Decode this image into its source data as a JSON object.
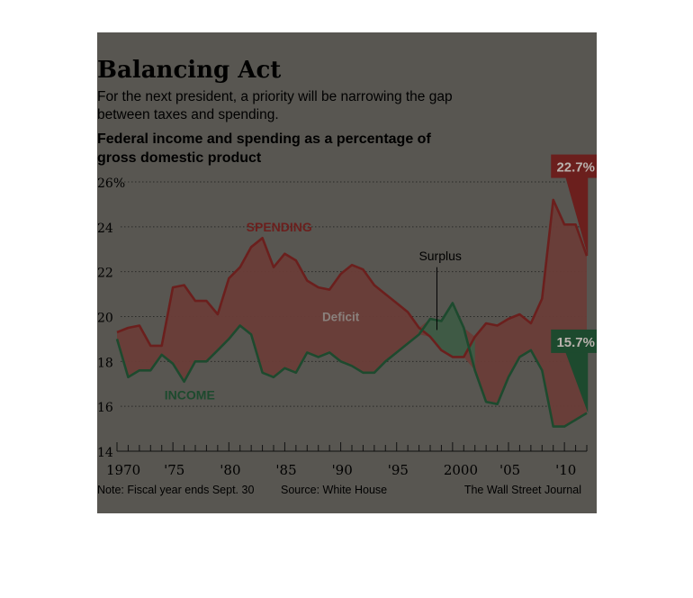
{
  "title": "Balancing Act",
  "subtitle": "For the next president, a priority will be narrowing the gap between taxes and spending.",
  "chart_heading": "Federal income and spending as a percentage of gross domestic product",
  "note": "Note: Fiscal year ends Sept. 30",
  "source": "Source: White House",
  "credit": "The Wall Street Journal",
  "colors": {
    "background": "#585651",
    "spending": "#6b1f1d",
    "income": "#1d4a2e",
    "deficit_fill": "#6a3d38",
    "surplus_fill": "#3f5a45",
    "gridline": "#2a2a28"
  },
  "chart_data": {
    "type": "area",
    "title": "Federal income and spending as a percentage of gross domestic product",
    "ylim": [
      14,
      26
    ],
    "yticks": [
      14,
      16,
      18,
      20,
      22,
      24,
      26
    ],
    "ytick_labels": [
      "14",
      "16",
      "18",
      "20",
      "22",
      "24",
      "26%"
    ],
    "xlim": [
      1970,
      2012
    ],
    "xticks": [
      1970,
      1975,
      1980,
      1985,
      1990,
      1995,
      2000,
      2005,
      2010
    ],
    "xtick_labels": [
      "1970",
      "'75",
      "'80",
      "'85",
      "'90",
      "'95",
      "2000",
      "'05",
      "'10"
    ],
    "grid": true,
    "x": [
      1970,
      1971,
      1972,
      1973,
      1974,
      1975,
      1976,
      1977,
      1978,
      1979,
      1980,
      1981,
      1982,
      1983,
      1984,
      1985,
      1986,
      1987,
      1988,
      1989,
      1990,
      1991,
      1992,
      1993,
      1994,
      1995,
      1996,
      1997,
      1998,
      1999,
      2000,
      2001,
      2002,
      2003,
      2004,
      2005,
      2006,
      2007,
      2008,
      2009,
      2010,
      2011,
      2012
    ],
    "series": [
      {
        "name": "SPENDING",
        "values": [
          19.3,
          19.5,
          19.6,
          18.7,
          18.7,
          21.3,
          21.4,
          20.7,
          20.7,
          20.1,
          21.7,
          22.2,
          23.1,
          23.5,
          22.2,
          22.8,
          22.5,
          21.6,
          21.3,
          21.2,
          21.9,
          22.3,
          22.1,
          21.4,
          21.0,
          20.6,
          20.2,
          19.5,
          19.1,
          18.5,
          18.2,
          18.2,
          19.1,
          19.7,
          19.6,
          19.9,
          20.1,
          19.7,
          20.8,
          25.2,
          24.1,
          24.1,
          22.7
        ]
      },
      {
        "name": "INCOME",
        "values": [
          19.0,
          17.3,
          17.6,
          17.6,
          18.3,
          17.9,
          17.1,
          18.0,
          18.0,
          18.5,
          19.0,
          19.6,
          19.2,
          17.5,
          17.3,
          17.7,
          17.5,
          18.4,
          18.2,
          18.4,
          18.0,
          17.8,
          17.5,
          17.5,
          18.0,
          18.4,
          18.8,
          19.2,
          19.9,
          19.8,
          20.6,
          19.5,
          17.6,
          16.2,
          16.1,
          17.3,
          18.2,
          18.5,
          17.6,
          15.1,
          15.1,
          15.4,
          15.7
        ]
      }
    ],
    "annotations": [
      {
        "text": "SPENDING",
        "x": 1984.5,
        "y": 24.0
      },
      {
        "text": "INCOME",
        "x": 1976.5,
        "y": 16.5
      },
      {
        "text": "Deficit",
        "x": 1990.0,
        "y": 20.0
      },
      {
        "text": "Surplus",
        "x": 1998.9,
        "y": 22.7
      },
      {
        "text": "22.7%",
        "x": 2008.8,
        "y": 26.7
      },
      {
        "text": "15.7%",
        "x": 2008.8,
        "y": 18.9
      }
    ]
  }
}
